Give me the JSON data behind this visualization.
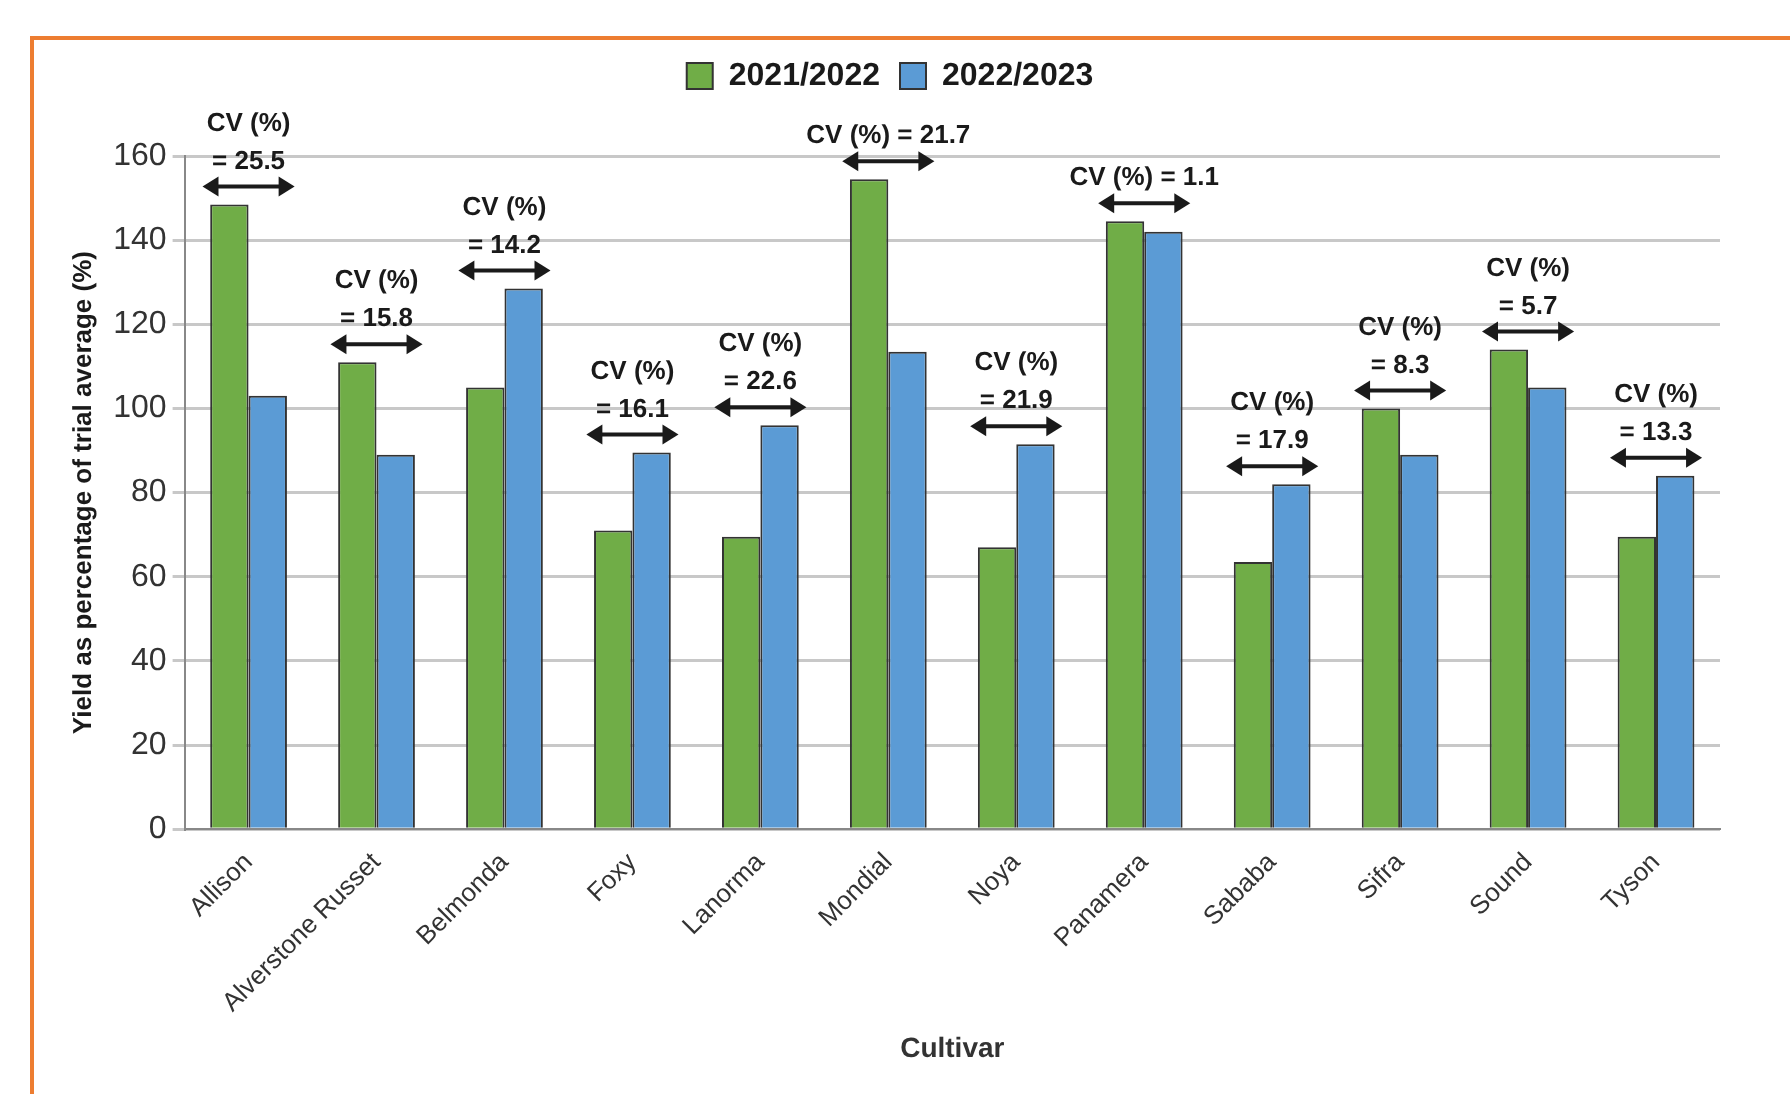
{
  "chart_data": {
    "type": "bar",
    "xlabel": "Cultivar",
    "ylabel": "Yield as percentage of trial average (%)",
    "categories": [
      "Allison",
      "Alverstone Russet",
      "Belmonda",
      "Foxy",
      "Lanorma",
      "Mondial",
      "Noya",
      "Panamera",
      "Sababa",
      "Sifra",
      "Sound",
      "Tyson"
    ],
    "series": [
      {
        "name": "2021/2022",
        "color": "#70ad47",
        "values": [
          148.5,
          111,
          105,
          71,
          69.5,
          154.5,
          67,
          144.5,
          63.5,
          100,
          114,
          69.5
        ]
      },
      {
        "name": "2022/2023",
        "color": "#5b9bd5",
        "values": [
          103,
          89,
          128.5,
          89.5,
          96,
          113.5,
          91.5,
          142,
          82,
          89,
          105,
          84
        ]
      }
    ],
    "ylim": [
      0,
      160
    ],
    "yticks": [
      0,
      20,
      40,
      60,
      80,
      100,
      120,
      140,
      160
    ],
    "grid": "y",
    "legend": "top",
    "annotations": [
      "CV (%)\n= 25.5",
      "CV (%)\n= 15.8",
      "CV (%)\n= 14.2",
      "CV (%)\n= 16.1",
      "CV (%)\n= 22.6",
      "CV (%) = 21.7",
      "CV (%)\n= 21.9",
      "CV (%) = 1.1",
      "CV (%)\n= 17.9",
      "CV (%)\n= 8.3",
      "CV (%)\n= 5.7",
      "CV (%)\n= 13.3"
    ]
  }
}
